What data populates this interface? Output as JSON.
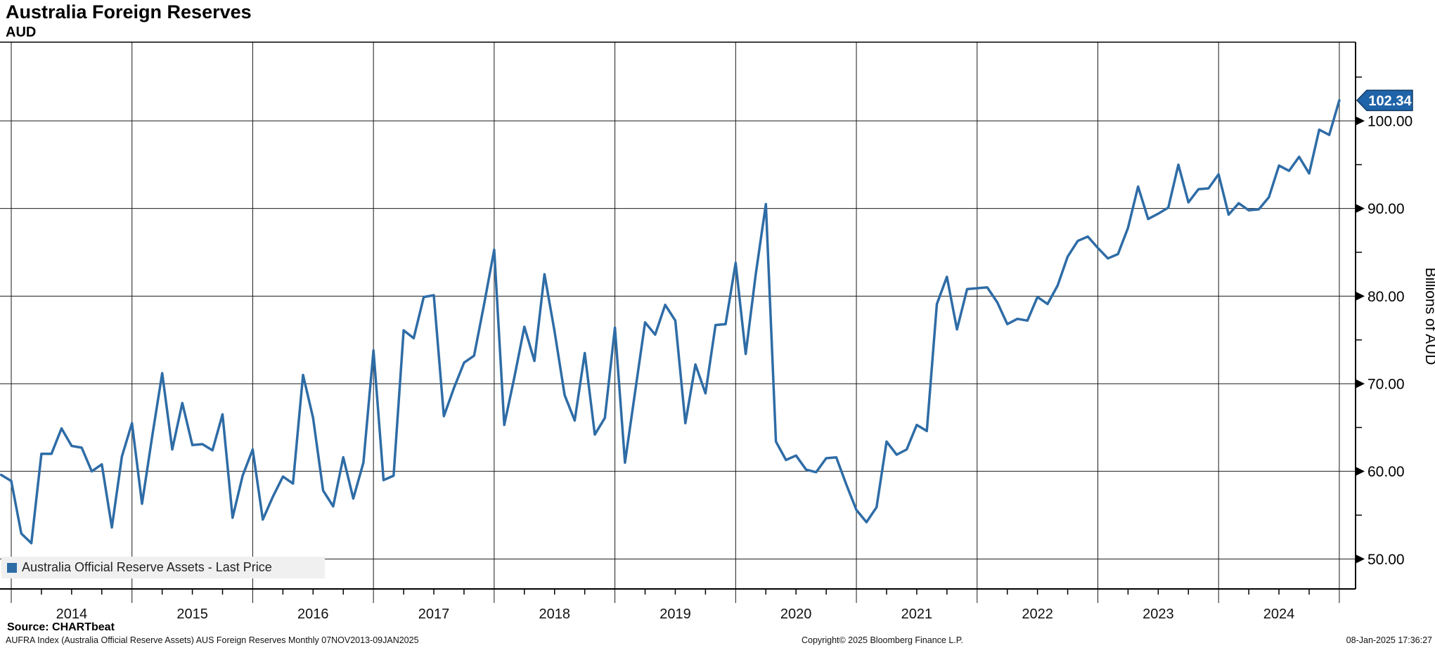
{
  "header": {
    "title": "Australia Foreign Reserves",
    "subtitle": "AUD"
  },
  "legend": {
    "label": "Australia Official Reserve Assets - Last Price"
  },
  "last_price": {
    "value": "102.34"
  },
  "y_axis": {
    "title": "Billions of AUD",
    "tick_labels": [
      "100.00",
      "90.00",
      "80.00",
      "70.00",
      "60.00",
      "50.00"
    ]
  },
  "x_axis": {
    "year_labels": [
      "2014",
      "2015",
      "2016",
      "2017",
      "2018",
      "2019",
      "2020",
      "2021",
      "2022",
      "2023",
      "2024"
    ]
  },
  "footer": {
    "source": "Source: CHARTbeat",
    "description": "AUFRA Index (Australia Official Reserve Assets) AUS Foreign Reserves  Monthly 07NOV2013-09JAN2025",
    "copyright": "Copyright© 2025 Bloomberg Finance L.P.",
    "timestamp": "08-Jan-2025 17:36:27"
  },
  "colors": {
    "line": "#2e6ca6",
    "legend_marker": "#2e6ca6",
    "badge_fill": "#1f63a8",
    "badge_stroke": "#153f66",
    "grid": "#1a1a1a",
    "legend_bg": "#f0f0f0"
  },
  "chart_data": {
    "type": "line",
    "title": "Australia Foreign Reserves",
    "subtitle": "AUD",
    "ylabel": "Billions of AUD",
    "series_name": "Australia Official Reserve Assets - Last Price",
    "frequency": "Monthly",
    "date_range": "07NOV2013-09JAN2025",
    "last_price": 102.34,
    "ylim": [
      46,
      109
    ],
    "y_major_gridlines": [
      50,
      60,
      70,
      80,
      90,
      100
    ],
    "legend_position": "bottom-left",
    "grid": true,
    "x": [
      "2013-12",
      "2014-01",
      "2014-02",
      "2014-03",
      "2014-04",
      "2014-05",
      "2014-06",
      "2014-07",
      "2014-08",
      "2014-09",
      "2014-10",
      "2014-11",
      "2014-12",
      "2015-01",
      "2015-02",
      "2015-03",
      "2015-04",
      "2015-05",
      "2015-06",
      "2015-07",
      "2015-08",
      "2015-09",
      "2015-10",
      "2015-11",
      "2015-12",
      "2016-01",
      "2016-02",
      "2016-03",
      "2016-04",
      "2016-05",
      "2016-06",
      "2016-07",
      "2016-08",
      "2016-09",
      "2016-10",
      "2016-11",
      "2016-12",
      "2017-01",
      "2017-02",
      "2017-03",
      "2017-04",
      "2017-05",
      "2017-06",
      "2017-07",
      "2017-08",
      "2017-09",
      "2017-10",
      "2017-11",
      "2017-12",
      "2018-01",
      "2018-02",
      "2018-03",
      "2018-04",
      "2018-05",
      "2018-06",
      "2018-07",
      "2018-08",
      "2018-09",
      "2018-10",
      "2018-11",
      "2018-12",
      "2019-01",
      "2019-02",
      "2019-03",
      "2019-04",
      "2019-05",
      "2019-06",
      "2019-07",
      "2019-08",
      "2019-09",
      "2019-10",
      "2019-11",
      "2019-12",
      "2020-01",
      "2020-02",
      "2020-03",
      "2020-04",
      "2020-05",
      "2020-06",
      "2020-07",
      "2020-08",
      "2020-09",
      "2020-10",
      "2020-11",
      "2020-12",
      "2021-01",
      "2021-02",
      "2021-03",
      "2021-04",
      "2021-05",
      "2021-06",
      "2021-07",
      "2021-08",
      "2021-09",
      "2021-10",
      "2021-11",
      "2021-12",
      "2022-01",
      "2022-02",
      "2022-03",
      "2022-04",
      "2022-05",
      "2022-06",
      "2022-07",
      "2022-08",
      "2022-09",
      "2022-10",
      "2022-11",
      "2022-12",
      "2023-01",
      "2023-02",
      "2023-03",
      "2023-04",
      "2023-05",
      "2023-06",
      "2023-07",
      "2023-08",
      "2023-09",
      "2023-10",
      "2023-11",
      "2023-12",
      "2024-01",
      "2024-02",
      "2024-03",
      "2024-04",
      "2024-05",
      "2024-06",
      "2024-07",
      "2024-08",
      "2024-09",
      "2024-10",
      "2024-11",
      "2024-12",
      "2025-01"
    ],
    "values": [
      59.6,
      58.9,
      52.9,
      51.8,
      62.0,
      62.0,
      64.9,
      62.9,
      62.7,
      60.0,
      60.8,
      53.6,
      61.7,
      65.5,
      56.3,
      63.9,
      71.2,
      62.5,
      67.8,
      63.0,
      63.1,
      62.4,
      66.5,
      54.7,
      59.5,
      62.5,
      54.5,
      57.1,
      59.4,
      58.6,
      71.0,
      66.1,
      57.8,
      56.0,
      61.6,
      56.9,
      61.0,
      73.8,
      59.0,
      59.5,
      76.1,
      75.2,
      79.9,
      80.1,
      66.3,
      69.5,
      72.4,
      73.2,
      79.1,
      85.3,
      65.3,
      70.7,
      76.5,
      72.6,
      82.5,
      76.0,
      68.7,
      65.8,
      73.5,
      64.2,
      66.1,
      76.4,
      61.0,
      69.0,
      77.0,
      75.6,
      79.0,
      77.2,
      65.5,
      72.2,
      68.9,
      76.7,
      76.8,
      83.8,
      73.4,
      82.5,
      90.5,
      63.4,
      61.3,
      61.8,
      60.2,
      59.9,
      61.5,
      61.6,
      58.5,
      55.6,
      54.2,
      55.9,
      63.4,
      61.9,
      62.5,
      65.3,
      64.6,
      79.1,
      82.2,
      76.2,
      80.8,
      80.9,
      81.0,
      79.3,
      76.8,
      77.4,
      77.2,
      79.9,
      79.1,
      81.2,
      84.5,
      86.3,
      86.8,
      85.5,
      84.3,
      84.8,
      87.8,
      92.5,
      88.8,
      89.4,
      90.1,
      95.0,
      90.7,
      92.2,
      92.3,
      93.9,
      89.3,
      90.6,
      89.8,
      89.9,
      91.3,
      94.9,
      94.3,
      95.9,
      94.0,
      99.0,
      98.4,
      102.34
    ]
  }
}
